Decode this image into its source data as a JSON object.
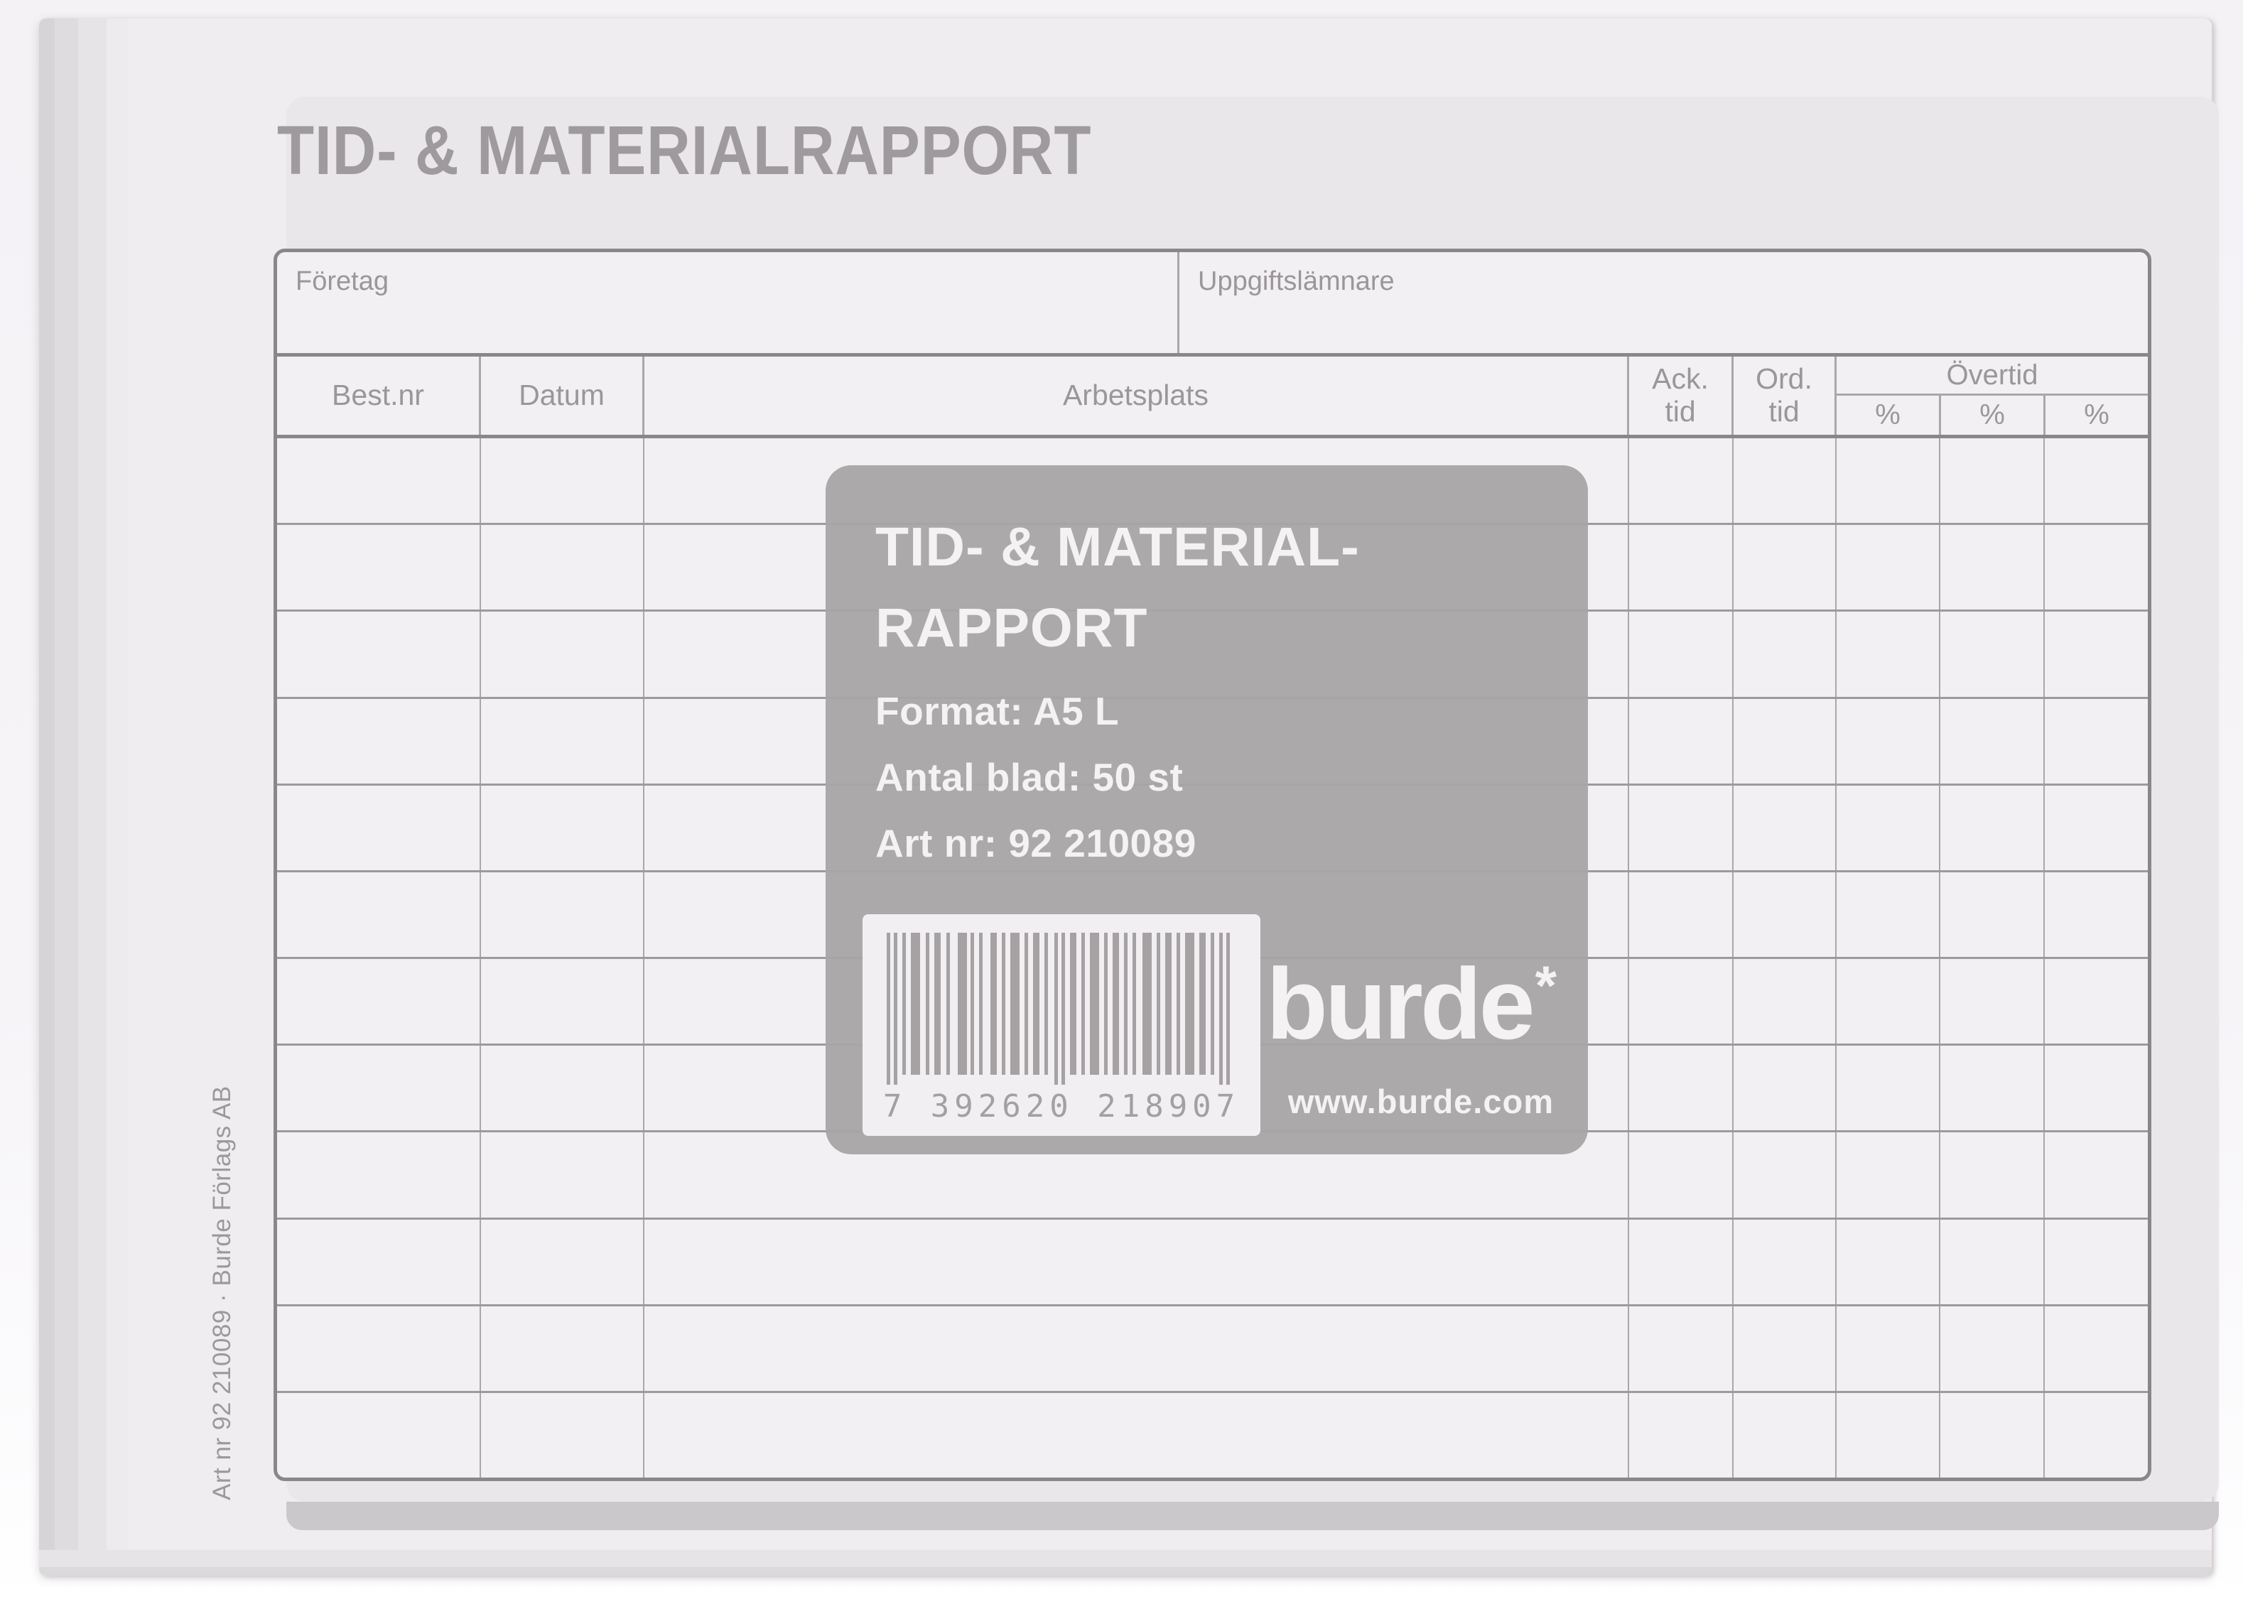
{
  "form": {
    "title": "TID- & MATERIALRAPPORT",
    "company_label": "Företag",
    "reporter_label": "Uppgiftslämnare",
    "table": {
      "col_best": "Best.nr",
      "col_datum": "Datum",
      "col_arbetsplats": "Arbetsplats",
      "col_ack_line1": "Ack.",
      "col_ack_line2": "tid",
      "col_ord_line1": "Ord.",
      "col_ord_line2": "tid",
      "col_overtid": "Övertid",
      "percent_cols": [
        "%",
        "%",
        "%"
      ],
      "body_row_count": 12
    }
  },
  "sticker": {
    "title_line1": "TID- & MATERIAL-",
    "title_line2": "RAPPORT",
    "format_line": "Format: A5 L",
    "sheets_line": "Antal blad: 50 st",
    "artnr_line": "Art nr: 92 210089",
    "barcode_digits": "7 392620 218907",
    "brand": "burde",
    "brand_asterisk": "*",
    "website": "www.burde.com"
  },
  "side_text": "Art nr 92 210089  ·  Burde Förlags AB",
  "colors": {
    "sticker_bg": "#a8a4a6",
    "print_area_bg": "#e9e7ea",
    "cell_bg": "#f2f0f3",
    "line_thin": "#aaa7a9",
    "line_heavy": "#8a8789",
    "label_text": "#9a969a",
    "title_text": "#9e9a9d"
  }
}
